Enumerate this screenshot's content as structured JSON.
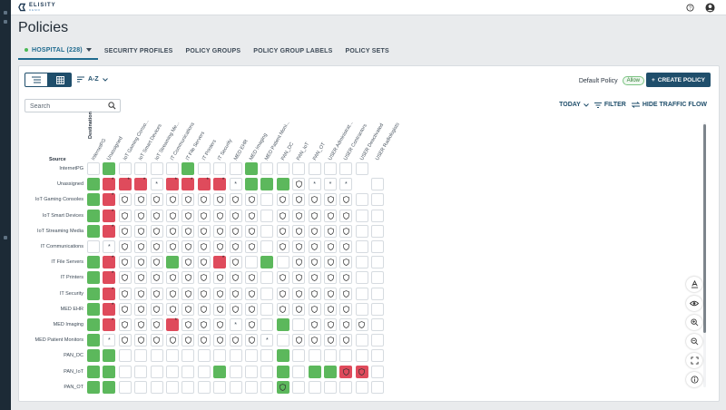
{
  "app": {
    "logo_text": "ELISITY",
    "logo_sub": "DEMO",
    "title": "Policies"
  },
  "tabs": [
    {
      "label": "HOSPITAL (228)",
      "active": true
    },
    {
      "label": "SECURITY PROFILES",
      "active": false
    },
    {
      "label": "POLICY GROUPS",
      "active": false
    },
    {
      "label": "POLICY GROUP LABELS",
      "active": false
    },
    {
      "label": "POLICY SETS",
      "active": false
    }
  ],
  "toolbar": {
    "sort_label": "A-Z",
    "default_policy_label": "Default Policy",
    "default_policy_value": "Allow",
    "create_label": "CREATE POLICY",
    "search_placeholder": "Search",
    "time_label": "TODAY",
    "filter_label": "FILTER",
    "traffic_label": "HIDE TRAFFIC FLOW"
  },
  "matrix": {
    "source_label": "Source",
    "destination_label": "Destination",
    "columns": [
      "InternetPG",
      "Unassigned",
      "IoT Gaming Conso...",
      "IoT Smart Devices",
      "IoT Streaming Me...",
      "IT Communications",
      "IT File Servers",
      "IT Printers",
      "IT Security",
      "MED EHR",
      "MED Imaging",
      "MED Patient Moni...",
      "PAN_DC",
      "PAN_IoT",
      "PAN_OT",
      "USER Administrat...",
      "USER Contractors",
      "USER Deactivated",
      "USER Radiologists"
    ],
    "rows": [
      {
        "label": "InternetPG",
        "cells": "-g----g---g------- "
      },
      {
        "label": "Unassigned",
        "cells": "grrr*rrrr*gggs*** "
      },
      {
        "label": "IoT Gaming Consoles",
        "cells": "grsssssssss-sssss"
      },
      {
        "label": "IoT Smart Devices",
        "cells": "grsssssssss-sssss"
      },
      {
        "label": "IoT Streaming Media",
        "cells": "grsssssssss-sssss"
      },
      {
        "label": "IT Communications",
        "cells": "-*sssssssss-sssss"
      },
      {
        "label": "IT File Servers",
        "cells": "grsssgssrs-g-ssss"
      },
      {
        "label": "IT Printers",
        "cells": "grsssssssss-sssss"
      },
      {
        "label": "IT Security",
        "cells": "grsssssssss-sssss"
      },
      {
        "label": "MED EHR",
        "cells": "grsssssssss-sssss"
      },
      {
        "label": "MED Imaging",
        "cells": "grsssrsss*s-g-ssss"
      },
      {
        "label": "MED Patient Monitors",
        "cells": "g*sssssssss*-ssss"
      },
      {
        "label": "PAN_DC",
        "cells": "gg----------g------"
      },
      {
        "label": "PAN_IoT",
        "cells": "gg------g---g-ggRR-"
      },
      {
        "label": "PAN_OT",
        "cells": "gg----------G------"
      }
    ]
  },
  "colors": {
    "allow": "#5cb85c",
    "deny": "#df4b5c",
    "accent": "#1f4e6b"
  },
  "icons": {
    "list_view": "list-view-icon",
    "grid_view": "grid-view-icon",
    "help": "help-icon",
    "user": "user-avatar-icon"
  }
}
